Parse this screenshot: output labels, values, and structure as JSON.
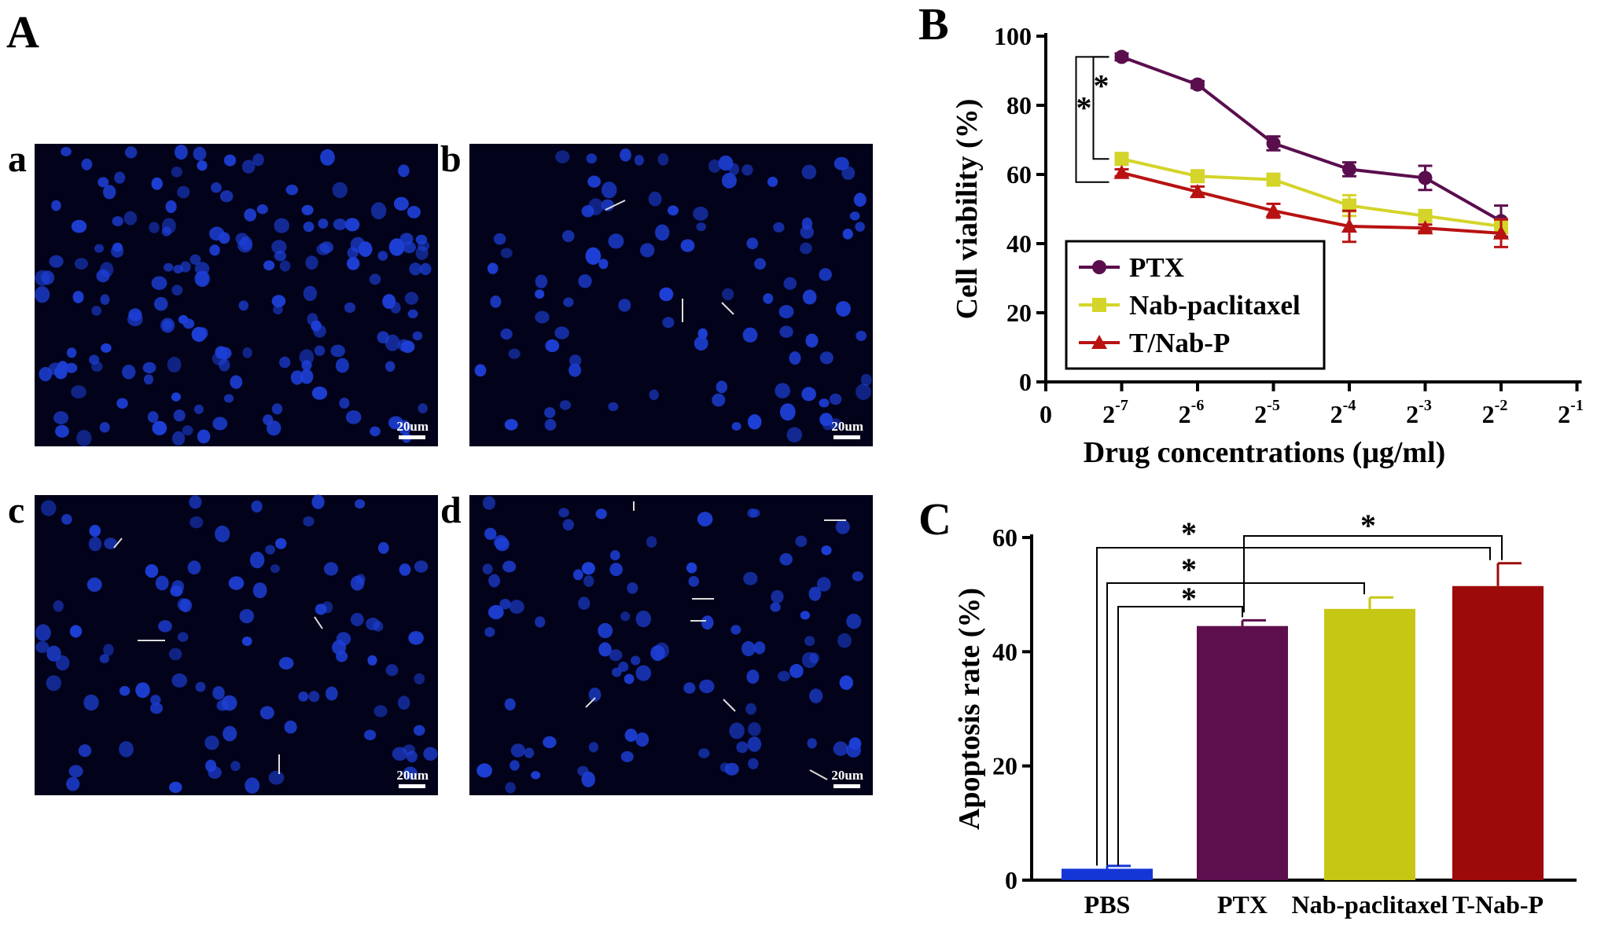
{
  "panels": {
    "A": "A",
    "B": "B",
    "C": "C",
    "micrographs": [
      {
        "label": "a",
        "scale_bar": "20um"
      },
      {
        "label": "b",
        "scale_bar": "20um"
      },
      {
        "label": "c",
        "scale_bar": "20um"
      },
      {
        "label": "d",
        "scale_bar": "20um"
      }
    ]
  },
  "colors": {
    "micrograph_bg": "#02021a",
    "nucleus": "#1d3fd6",
    "ptx": "#5a0e4e",
    "nab": "#d4d42a",
    "tnabp": "#b81212",
    "pbs": "#1436d6",
    "bar_ptx": "#5d0f4d",
    "bar_nab": "#c6c614",
    "bar_tnabp": "#9c0a0a"
  },
  "chart_data": [
    {
      "type": "line",
      "panel": "B",
      "xlabel": "Drug concentrations (μg/ml)",
      "ylabel": "Cell viability (%)",
      "ylim": [
        0,
        100
      ],
      "yticks": [
        "0",
        "20",
        "40",
        "60",
        "80",
        "100"
      ],
      "xticks": [
        {
          "label": "0",
          "exp": null
        },
        {
          "label": "2",
          "exp": "-7"
        },
        {
          "label": "2",
          "exp": "-6"
        },
        {
          "label": "2",
          "exp": "-5"
        },
        {
          "label": "2",
          "exp": "-4"
        },
        {
          "label": "2",
          "exp": "-3"
        },
        {
          "label": "2",
          "exp": "-2"
        },
        {
          "label": "2",
          "exp": "-1"
        }
      ],
      "x": [
        "2^-7",
        "2^-6",
        "2^-5",
        "2^-4",
        "2^-3",
        "2^-2"
      ],
      "series": [
        {
          "name": "PTX",
          "marker": "circle",
          "values": [
            94,
            86,
            69,
            61.5,
            59,
            46.5
          ],
          "errors": [
            1,
            1,
            2,
            2,
            3.5,
            4.5
          ]
        },
        {
          "name": "Nab-paclitaxel",
          "marker": "square",
          "values": [
            64.5,
            59.5,
            58.5,
            51,
            48,
            45
          ],
          "errors": [
            1.5,
            1.5,
            1.5,
            3,
            1.5,
            2
          ]
        },
        {
          "name": "T/Nab-P",
          "marker": "triangle",
          "values": [
            60.5,
            55,
            49.5,
            45,
            44.5,
            43
          ],
          "errors": [
            1,
            1.5,
            2,
            4.5,
            1,
            4
          ]
        }
      ],
      "legend": "inside-left",
      "significance": [
        "*",
        "*"
      ]
    },
    {
      "type": "bar",
      "panel": "C",
      "categories": [
        "PBS",
        "PTX",
        "Nab-paclitaxel",
        "T-Nab-P"
      ],
      "values": [
        2,
        44.5,
        47.5,
        51.5
      ],
      "errors": [
        0.5,
        1,
        2,
        4
      ],
      "ylabel": "Apoptosis rate (%)",
      "ylim": [
        0,
        60
      ],
      "yticks": [
        "0",
        "20",
        "40",
        "60"
      ],
      "significance": [
        "*",
        "*",
        "*",
        "*"
      ]
    }
  ]
}
